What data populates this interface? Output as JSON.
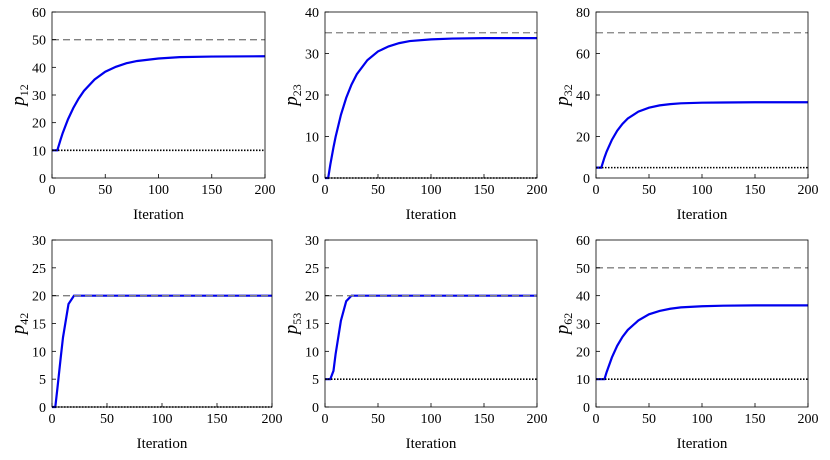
{
  "chart_data": [
    {
      "type": "line",
      "ylabel": "p",
      "ylabel_sub": "12",
      "xlabel": "Iteration",
      "xlim": [
        0,
        200
      ],
      "xticks": [
        0,
        50,
        100,
        150,
        200
      ],
      "ylim": [
        0,
        60
      ],
      "yticks": [
        0,
        10,
        20,
        30,
        40,
        50,
        60
      ],
      "series": [
        {
          "color": "#0000ee",
          "linestyle": "solid",
          "x": [
            0,
            3,
            5,
            8,
            10,
            15,
            20,
            25,
            30,
            40,
            50,
            60,
            70,
            80,
            100,
            120,
            150,
            200
          ],
          "values": [
            10,
            10,
            10,
            13.8,
            16.2,
            21.2,
            25.3,
            28.7,
            31.5,
            35.6,
            38.4,
            40.2,
            41.5,
            42.3,
            43.2,
            43.7,
            43.9,
            44.0
          ]
        },
        {
          "color": "#808080",
          "linestyle": "dashed",
          "x": [
            0,
            200
          ],
          "values": [
            50,
            50
          ]
        },
        {
          "color": "#000000",
          "linestyle": "dotted",
          "x": [
            0,
            200
          ],
          "values": [
            10,
            10
          ]
        }
      ]
    },
    {
      "type": "line",
      "ylabel": "p",
      "ylabel_sub": "23",
      "xlabel": "Iteration",
      "xlim": [
        0,
        200
      ],
      "xticks": [
        0,
        50,
        100,
        150,
        200
      ],
      "ylim": [
        0,
        40
      ],
      "yticks": [
        0,
        10,
        20,
        30,
        40
      ],
      "series": [
        {
          "color": "#0000ee",
          "linestyle": "solid",
          "x": [
            0,
            3,
            5,
            8,
            10,
            15,
            20,
            25,
            30,
            40,
            50,
            60,
            70,
            80,
            100,
            120,
            150,
            200
          ],
          "values": [
            0,
            0,
            3.2,
            7.4,
            9.9,
            15.2,
            19.3,
            22.5,
            25.0,
            28.4,
            30.5,
            31.7,
            32.5,
            33.0,
            33.4,
            33.6,
            33.7,
            33.7
          ]
        },
        {
          "color": "#808080",
          "linestyle": "dashed",
          "x": [
            0,
            200
          ],
          "values": [
            35,
            35
          ]
        },
        {
          "color": "#000000",
          "linestyle": "dotted",
          "x": [
            0,
            200
          ],
          "values": [
            0,
            0
          ]
        }
      ]
    },
    {
      "type": "line",
      "ylabel": "p",
      "ylabel_sub": "32",
      "xlabel": "Iteration",
      "xlim": [
        0,
        200
      ],
      "xticks": [
        0,
        50,
        100,
        150,
        200
      ],
      "ylim": [
        0,
        80
      ],
      "yticks": [
        0,
        20,
        40,
        60,
        80
      ],
      "series": [
        {
          "color": "#0000ee",
          "linestyle": "solid",
          "x": [
            0,
            3,
            5,
            8,
            10,
            15,
            20,
            25,
            30,
            40,
            50,
            60,
            70,
            80,
            100,
            120,
            150,
            200
          ],
          "values": [
            5,
            5,
            5,
            9.9,
            12.7,
            18.4,
            22.8,
            26.1,
            28.7,
            32.0,
            33.9,
            35.0,
            35.6,
            36.0,
            36.3,
            36.4,
            36.5,
            36.5
          ]
        },
        {
          "color": "#808080",
          "linestyle": "dashed",
          "x": [
            0,
            200
          ],
          "values": [
            70,
            70
          ]
        },
        {
          "color": "#000000",
          "linestyle": "dotted",
          "x": [
            0,
            200
          ],
          "values": [
            5,
            5
          ]
        }
      ]
    },
    {
      "type": "line",
      "ylabel": "p",
      "ylabel_sub": "42",
      "xlabel": "Iteration",
      "xlim": [
        0,
        200
      ],
      "xticks": [
        0,
        50,
        100,
        150,
        200
      ],
      "ylim": [
        0,
        30
      ],
      "yticks": [
        0,
        5,
        10,
        15,
        20,
        25,
        30
      ],
      "series": [
        {
          "color": "#0000ee",
          "linestyle": "solid",
          "x": [
            0,
            3,
            5,
            8,
            10,
            15,
            20,
            25,
            30,
            40,
            50,
            60,
            70,
            80,
            100,
            120,
            150,
            200
          ],
          "values": [
            0,
            0,
            3.5,
            9,
            12.5,
            18.5,
            20,
            20,
            20,
            20,
            20,
            20,
            20,
            20,
            20,
            20,
            20,
            20
          ]
        },
        {
          "color": "#808080",
          "linestyle": "dashed",
          "x": [
            0,
            200
          ],
          "values": [
            20,
            20
          ]
        },
        {
          "color": "#000000",
          "linestyle": "dotted",
          "x": [
            0,
            200
          ],
          "values": [
            0,
            0
          ]
        }
      ]
    },
    {
      "type": "line",
      "ylabel": "p",
      "ylabel_sub": "53",
      "xlabel": "Iteration",
      "xlim": [
        0,
        200
      ],
      "xticks": [
        0,
        50,
        100,
        150,
        200
      ],
      "ylim": [
        0,
        30
      ],
      "yticks": [
        0,
        5,
        10,
        15,
        20,
        25,
        30
      ],
      "series": [
        {
          "color": "#0000ee",
          "linestyle": "solid",
          "x": [
            0,
            3,
            5,
            8,
            10,
            15,
            20,
            25,
            30,
            40,
            50,
            60,
            70,
            80,
            100,
            120,
            150,
            200
          ],
          "values": [
            5,
            5,
            5,
            6.5,
            9.5,
            15.5,
            19,
            20,
            20,
            20,
            20,
            20,
            20,
            20,
            20,
            20,
            20,
            20
          ]
        },
        {
          "color": "#808080",
          "linestyle": "dashed",
          "x": [
            0,
            200
          ],
          "values": [
            20,
            20
          ]
        },
        {
          "color": "#000000",
          "linestyle": "dotted",
          "x": [
            0,
            200
          ],
          "values": [
            5,
            5
          ]
        }
      ]
    },
    {
      "type": "line",
      "ylabel": "p",
      "ylabel_sub": "62",
      "xlabel": "Iteration",
      "xlim": [
        0,
        200
      ],
      "xticks": [
        0,
        50,
        100,
        150,
        200
      ],
      "ylim": [
        0,
        60
      ],
      "yticks": [
        0,
        10,
        20,
        30,
        40,
        50,
        60
      ],
      "series": [
        {
          "color": "#0000ee",
          "linestyle": "solid",
          "x": [
            0,
            3,
            5,
            8,
            10,
            15,
            20,
            25,
            30,
            40,
            50,
            60,
            70,
            80,
            100,
            120,
            150,
            200
          ],
          "values": [
            10,
            10,
            10,
            10,
            12.5,
            17.8,
            22.0,
            25.2,
            27.7,
            31.1,
            33.3,
            34.5,
            35.3,
            35.8,
            36.2,
            36.4,
            36.5,
            36.5
          ]
        },
        {
          "color": "#808080",
          "linestyle": "dashed",
          "x": [
            0,
            200
          ],
          "values": [
            50,
            50
          ]
        },
        {
          "color": "#000000",
          "linestyle": "dotted",
          "x": [
            0,
            200
          ],
          "values": [
            10,
            10
          ]
        }
      ]
    }
  ]
}
